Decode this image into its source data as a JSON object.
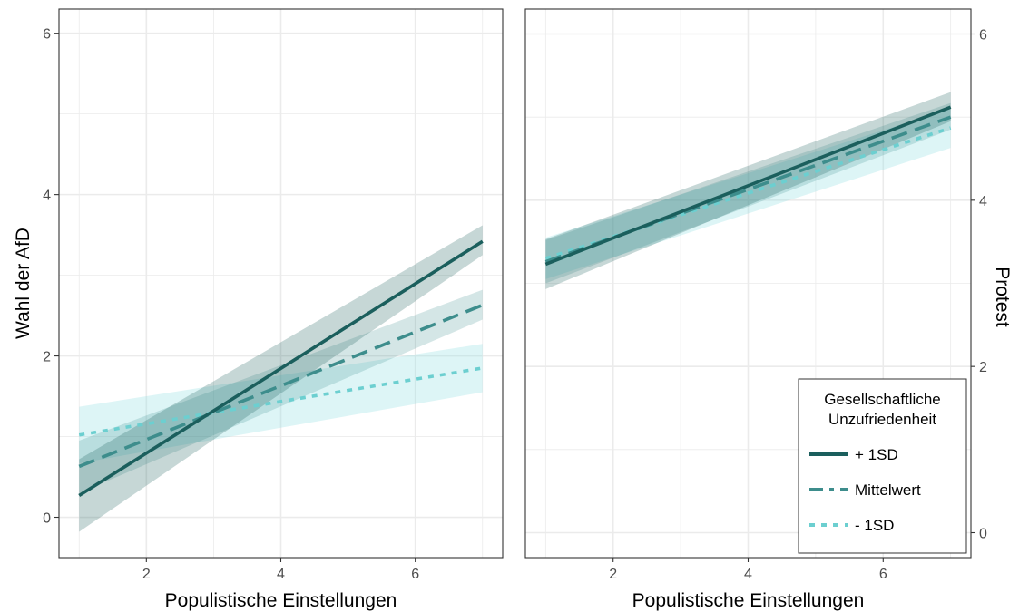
{
  "chart_data": {
    "type": "line",
    "colors": {
      "plus_1sd": "#1b5f5d",
      "mittelwert": "#3d8d8c",
      "minus_1sd": "#6ccfd0",
      "band_plus": "#1b5f5d",
      "band_mittel": "#3d8d8c",
      "band_minus": "#8fdde2",
      "grid": "#ebebeb",
      "panel_border": "#333333"
    },
    "legend": {
      "title_line1": "Gesellschaftliche",
      "title_line2": "Unzufriedenheit",
      "position": "bottom-right of right panel",
      "entries": [
        {
          "key": "plus_1sd",
          "label": "+ 1SD",
          "linestyle": "solid"
        },
        {
          "key": "mittelwert",
          "label": "Mittelwert",
          "linestyle": "dashed"
        },
        {
          "key": "minus_1sd",
          "label": "- 1SD",
          "linestyle": "dotted"
        }
      ]
    },
    "panels": [
      {
        "name": "left",
        "xlabel": "Populistische Einstellungen",
        "ylabel": "Wahl der AfD",
        "ylabel_side": "left",
        "xlim": [
          0.7,
          7.3
        ],
        "ylim": [
          -0.5,
          6.3
        ],
        "xticks": [
          2,
          4,
          6
        ],
        "yticks": [
          0,
          2,
          4,
          6
        ],
        "grid": true,
        "series": [
          {
            "key": "plus_1sd",
            "x": [
              1,
              7
            ],
            "y": [
              0.27,
              3.42
            ],
            "lower": [
              -0.18,
              3.25
            ],
            "upper": [
              0.72,
              3.62
            ]
          },
          {
            "key": "mittelwert",
            "x": [
              1,
              7
            ],
            "y": [
              0.63,
              2.63
            ],
            "lower": [
              0.3,
              2.45
            ],
            "upper": [
              0.95,
              2.82
            ]
          },
          {
            "key": "minus_1sd",
            "x": [
              1,
              7
            ],
            "y": [
              1.02,
              1.85
            ],
            "lower": [
              0.67,
              1.55
            ],
            "upper": [
              1.37,
              2.15
            ]
          }
        ]
      },
      {
        "name": "right",
        "xlabel": "Populistische Einstellungen",
        "ylabel": "Protest",
        "ylabel_side": "right",
        "xlim": [
          0.7,
          7.3
        ],
        "ylim": [
          -0.3,
          6.3
        ],
        "xticks": [
          2,
          4,
          6
        ],
        "yticks": [
          0,
          2,
          4,
          6
        ],
        "grid": true,
        "series": [
          {
            "key": "plus_1sd",
            "x": [
              1,
              7
            ],
            "y": [
              3.23,
              5.12
            ],
            "lower": [
              2.93,
              4.95
            ],
            "upper": [
              3.53,
              5.3
            ]
          },
          {
            "key": "mittelwert",
            "x": [
              1,
              7
            ],
            "y": [
              3.26,
              5.0
            ],
            "lower": [
              3.0,
              4.85
            ],
            "upper": [
              3.52,
              5.17
            ]
          },
          {
            "key": "minus_1sd",
            "x": [
              1,
              7
            ],
            "y": [
              3.3,
              4.87
            ],
            "lower": [
              3.05,
              4.63
            ],
            "upper": [
              3.55,
              5.1
            ]
          }
        ]
      }
    ]
  }
}
